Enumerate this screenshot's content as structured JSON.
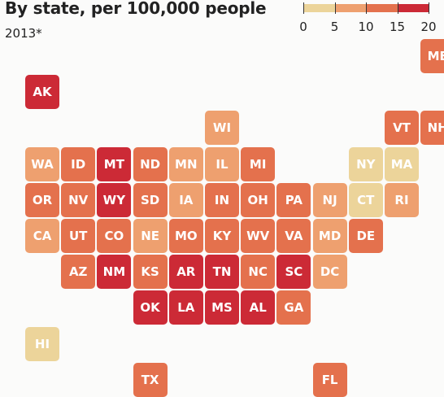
{
  "title": "By state, per 100,000 people",
  "subtitle": "2013*",
  "legend": {
    "ticks": [
      "0",
      "5",
      "10",
      "15",
      "20"
    ],
    "bins": [
      {
        "min": 0,
        "max": 5,
        "color": "#ecd49a"
      },
      {
        "min": 5,
        "max": 10,
        "color": "#eea06f"
      },
      {
        "min": 10,
        "max": 15,
        "color": "#e4714d"
      },
      {
        "min": 15,
        "max": 20,
        "color": "#cc2a36"
      }
    ]
  },
  "chart_data": {
    "type": "tile-grid-map",
    "title": "By state, per 100,000 people",
    "subtitle": "2013*",
    "color_scale": {
      "min": 0,
      "max": 20,
      "bins": [
        0,
        5,
        10,
        15,
        20
      ]
    },
    "states": [
      {
        "abbr": "ME",
        "row": 0,
        "col": 11,
        "bin": 2
      },
      {
        "abbr": "AK",
        "row": 1,
        "col": 0,
        "bin": 3
      },
      {
        "abbr": "WI",
        "row": 2,
        "col": 5,
        "bin": 1
      },
      {
        "abbr": "VT",
        "row": 2,
        "col": 10,
        "bin": 2
      },
      {
        "abbr": "NH",
        "row": 2,
        "col": 11,
        "bin": 2
      },
      {
        "abbr": "WA",
        "row": 3,
        "col": 0,
        "bin": 1
      },
      {
        "abbr": "ID",
        "row": 3,
        "col": 1,
        "bin": 2
      },
      {
        "abbr": "MT",
        "row": 3,
        "col": 2,
        "bin": 3
      },
      {
        "abbr": "ND",
        "row": 3,
        "col": 3,
        "bin": 2
      },
      {
        "abbr": "MN",
        "row": 3,
        "col": 4,
        "bin": 1
      },
      {
        "abbr": "IL",
        "row": 3,
        "col": 5,
        "bin": 1
      },
      {
        "abbr": "MI",
        "row": 3,
        "col": 6,
        "bin": 2
      },
      {
        "abbr": "NY",
        "row": 3,
        "col": 9,
        "bin": 0
      },
      {
        "abbr": "MA",
        "row": 3,
        "col": 10,
        "bin": 0
      },
      {
        "abbr": "OR",
        "row": 4,
        "col": 0,
        "bin": 2
      },
      {
        "abbr": "NV",
        "row": 4,
        "col": 1,
        "bin": 2
      },
      {
        "abbr": "WY",
        "row": 4,
        "col": 2,
        "bin": 3
      },
      {
        "abbr": "SD",
        "row": 4,
        "col": 3,
        "bin": 2
      },
      {
        "abbr": "IA",
        "row": 4,
        "col": 4,
        "bin": 1
      },
      {
        "abbr": "IN",
        "row": 4,
        "col": 5,
        "bin": 2
      },
      {
        "abbr": "OH",
        "row": 4,
        "col": 6,
        "bin": 2
      },
      {
        "abbr": "PA",
        "row": 4,
        "col": 7,
        "bin": 2
      },
      {
        "abbr": "NJ",
        "row": 4,
        "col": 8,
        "bin": 1
      },
      {
        "abbr": "CT",
        "row": 4,
        "col": 9,
        "bin": 0
      },
      {
        "abbr": "RI",
        "row": 4,
        "col": 10,
        "bin": 1
      },
      {
        "abbr": "CA",
        "row": 5,
        "col": 0,
        "bin": 1
      },
      {
        "abbr": "UT",
        "row": 5,
        "col": 1,
        "bin": 2
      },
      {
        "abbr": "CO",
        "row": 5,
        "col": 2,
        "bin": 2
      },
      {
        "abbr": "NE",
        "row": 5,
        "col": 3,
        "bin": 1
      },
      {
        "abbr": "MO",
        "row": 5,
        "col": 4,
        "bin": 2
      },
      {
        "abbr": "KY",
        "row": 5,
        "col": 5,
        "bin": 2
      },
      {
        "abbr": "WV",
        "row": 5,
        "col": 6,
        "bin": 2
      },
      {
        "abbr": "VA",
        "row": 5,
        "col": 7,
        "bin": 2
      },
      {
        "abbr": "MD",
        "row": 5,
        "col": 8,
        "bin": 1
      },
      {
        "abbr": "DE",
        "row": 5,
        "col": 9,
        "bin": 2
      },
      {
        "abbr": "AZ",
        "row": 6,
        "col": 1,
        "bin": 2
      },
      {
        "abbr": "NM",
        "row": 6,
        "col": 2,
        "bin": 3
      },
      {
        "abbr": "KS",
        "row": 6,
        "col": 3,
        "bin": 2
      },
      {
        "abbr": "AR",
        "row": 6,
        "col": 4,
        "bin": 3
      },
      {
        "abbr": "TN",
        "row": 6,
        "col": 5,
        "bin": 3
      },
      {
        "abbr": "NC",
        "row": 6,
        "col": 6,
        "bin": 2
      },
      {
        "abbr": "SC",
        "row": 6,
        "col": 7,
        "bin": 3
      },
      {
        "abbr": "DC",
        "row": 6,
        "col": 8,
        "bin": 1
      },
      {
        "abbr": "OK",
        "row": 7,
        "col": 3,
        "bin": 3
      },
      {
        "abbr": "LA",
        "row": 7,
        "col": 4,
        "bin": 3
      },
      {
        "abbr": "MS",
        "row": 7,
        "col": 5,
        "bin": 3
      },
      {
        "abbr": "AL",
        "row": 7,
        "col": 6,
        "bin": 3
      },
      {
        "abbr": "GA",
        "row": 7,
        "col": 7,
        "bin": 2
      },
      {
        "abbr": "HI",
        "row": 8,
        "col": 0,
        "bin": 0
      },
      {
        "abbr": "TX",
        "row": 9,
        "col": 3,
        "bin": 2
      },
      {
        "abbr": "FL",
        "row": 9,
        "col": 8,
        "bin": 2
      }
    ]
  }
}
